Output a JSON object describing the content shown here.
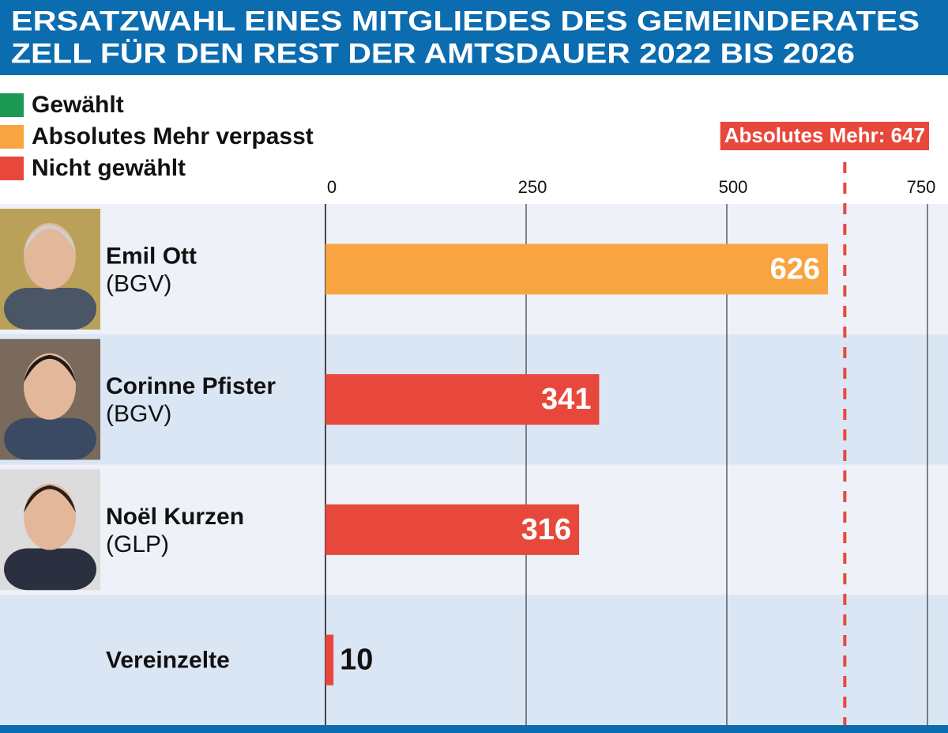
{
  "chart_data": {
    "type": "bar",
    "orientation": "horizontal",
    "title": [
      "ERSATZWAHL EINES MITGLIEDES DES GEMEINDERATES",
      "ZELL FÜR DEN REST DER AMTSDAUER 2022 BIS 2026"
    ],
    "legend": [
      {
        "name": "Gewählt",
        "color": "#1b9a55"
      },
      {
        "name": "Absolutes Mehr verpasst",
        "color": "#f8a541"
      },
      {
        "name": "Nicht gewählt",
        "color": "#e8483c"
      }
    ],
    "categories": [
      "Emil Ott",
      "Corinne Pfister",
      "Noël Kurzen",
      "Vereinzelte"
    ],
    "parties": [
      "(BGV)",
      "(BGV)",
      "(GLP)",
      null
    ],
    "values": [
      626,
      341,
      316,
      10
    ],
    "colors": [
      "#f8a541",
      "#e8483c",
      "#e8483c",
      "#e8483c"
    ],
    "xlim": [
      0,
      750
    ],
    "xticks": [
      0,
      250,
      500,
      750
    ],
    "grid": true,
    "threshold": {
      "value": 647,
      "label": "Absolutes Mehr: 647",
      "color": "#e8483c"
    }
  }
}
